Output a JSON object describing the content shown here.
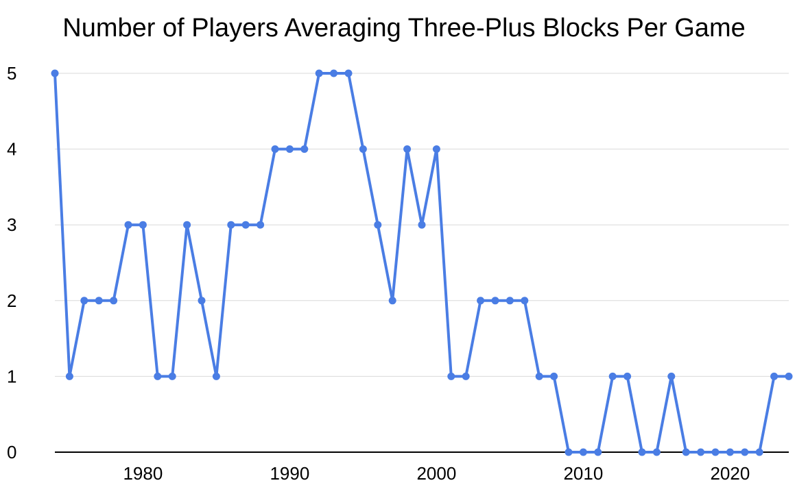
{
  "chart_data": {
    "type": "line",
    "title": "Number of Players Averaging Three-Plus Blocks Per Game",
    "xlabel": "",
    "ylabel": "",
    "x": [
      1974,
      1975,
      1976,
      1977,
      1978,
      1979,
      1980,
      1981,
      1982,
      1983,
      1984,
      1985,
      1986,
      1987,
      1988,
      1989,
      1990,
      1991,
      1992,
      1993,
      1994,
      1995,
      1996,
      1997,
      1998,
      1999,
      2000,
      2001,
      2002,
      2003,
      2004,
      2005,
      2006,
      2007,
      2008,
      2009,
      2010,
      2011,
      2012,
      2013,
      2014,
      2015,
      2016,
      2017,
      2018,
      2019,
      2020,
      2021,
      2022,
      2023,
      2024
    ],
    "values": [
      5,
      1,
      2,
      2,
      2,
      3,
      3,
      1,
      1,
      3,
      2,
      1,
      3,
      3,
      3,
      4,
      4,
      4,
      5,
      5,
      5,
      4,
      3,
      2,
      4,
      3,
      4,
      1,
      1,
      2,
      2,
      2,
      2,
      1,
      1,
      0,
      0,
      0,
      1,
      1,
      0,
      0,
      1,
      0,
      0,
      0,
      0,
      0,
      0,
      1,
      1
    ],
    "xlim": [
      1974,
      2024
    ],
    "ylim": [
      0,
      5
    ],
    "xticks": [
      1980,
      1990,
      2000,
      2010,
      2020
    ],
    "yticks": [
      0,
      1,
      2,
      3,
      4,
      5
    ],
    "grid": "horizontal",
    "legend": "none",
    "series_color": "#4a7de4",
    "gridline_color": "#d9d9d9",
    "axis_color": "#000000",
    "marker": "circle"
  }
}
